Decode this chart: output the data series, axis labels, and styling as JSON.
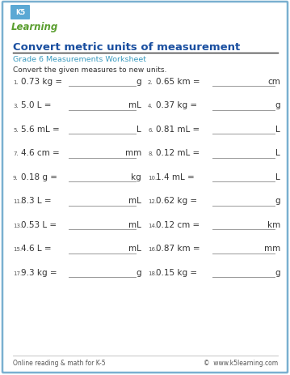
{
  "title": "Convert metric units of measurement",
  "subtitle": "Grade 6 Measurements Worksheet",
  "instruction": "Convert the given measures to new units.",
  "title_color": "#1a4fa0",
  "subtitle_color": "#3a9abf",
  "border_color": "#7ab0d0",
  "footer_left": "Online reading & math for K-5",
  "footer_right": "©  www.k5learning.com",
  "problems": [
    [
      "1.",
      "0.73 kg =",
      "g",
      "2.",
      "0.65 km =",
      "cm"
    ],
    [
      "3.",
      "5.0 L =",
      "mL",
      "4.",
      "0.37 kg =",
      "g"
    ],
    [
      "5.",
      "5.6 mL =",
      "L",
      "6.",
      "0.81 mL =",
      "L"
    ],
    [
      "7.",
      "4.6 cm =",
      "mm",
      "8.",
      "0.12 mL =",
      "L"
    ],
    [
      "9.",
      "0.18 g =",
      "kg",
      "10.",
      "1.4 mL =",
      "L"
    ],
    [
      "11.",
      "8.3 L =",
      "mL",
      "12.",
      "0.62 kg =",
      "g"
    ],
    [
      "13.",
      "0.53 L =",
      "mL",
      "14.",
      "0.12 cm =",
      "km"
    ],
    [
      "15.",
      "4.6 L =",
      "mL",
      "16.",
      "0.87 km =",
      "mm"
    ],
    [
      "17.",
      "9.3 kg =",
      "g",
      "18.",
      "0.15 kg =",
      "g"
    ]
  ],
  "background": "#ffffff",
  "text_color": "#333333",
  "line_color": "#999999",
  "num_color": "#555555",
  "logo_green": "#5a9e2f",
  "logo_blue": "#2288bb"
}
